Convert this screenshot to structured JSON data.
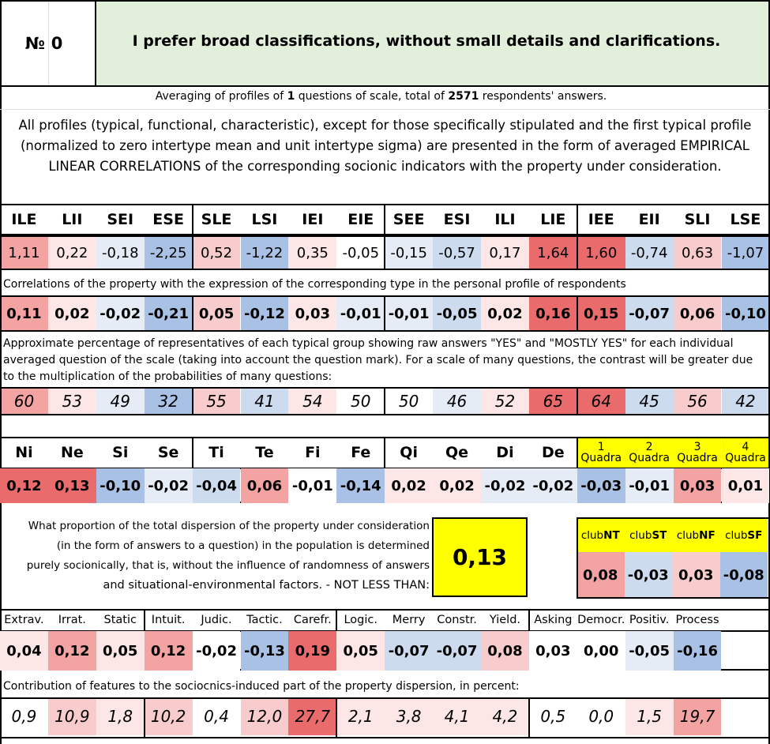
{
  "header": {
    "num_label": "№",
    "num_value": "0",
    "title": "I prefer broad classifications, without small details and clarifications."
  },
  "summary": {
    "pre": "Averaging of profiles of ",
    "questions": "1",
    "mid": " questions of scale, total of ",
    "answers": "2571",
    "post": " respondents' answers."
  },
  "description": "All profiles (typical, functional, characteristic), except for those specifically stipulated and the first typical profile (normalized to zero intertype mean and unit intertype sigma) are presented in the form of averaged EMPIRICAL LINEAR CORRELATIONS of the corresponding socionic indicators with the property under consideration.",
  "types": {
    "headers": [
      "ILE",
      "LII",
      "SEI",
      "ESE",
      "SLE",
      "LSI",
      "IEI",
      "EIE",
      "SEE",
      "ESI",
      "ILI",
      "LIE",
      "IEE",
      "EII",
      "SLI",
      "LSE"
    ],
    "profile": [
      "1,11",
      "0,22",
      "-0,18",
      "-2,25",
      "0,52",
      "-1,22",
      "0,35",
      "-0,05",
      "-0,15",
      "-0,57",
      "0,17",
      "1,64",
      "1,60",
      "-0,74",
      "0,63",
      "-1,07"
    ],
    "corr_note": "Correlations of the property with the expression of the corresponding type in the personal profile of respondents",
    "corr": [
      "0,11",
      "0,02",
      "-0,02",
      "-0,21",
      "0,05",
      "-0,12",
      "0,03",
      "-0,01",
      "-0,01",
      "-0,05",
      "0,02",
      "0,16",
      "0,15",
      "-0,07",
      "0,06",
      "-0,10"
    ],
    "pct_note": "Approximate percentage of representatives of each typical group showing raw answers \"YES\" and \"MOSTLY YES\" for each individual averaged question of the scale (taking into account the question mark). For a scale of many questions, the contrast will be greater due to the multiplication of the probabilities of many questions:",
    "pct": [
      "60",
      "53",
      "49",
      "32",
      "55",
      "41",
      "54",
      "50",
      "50",
      "46",
      "52",
      "65",
      "64",
      "45",
      "56",
      "42"
    ]
  },
  "functions": {
    "headers": [
      "Ni",
      "Ne",
      "Si",
      "Se",
      "Ti",
      "Te",
      "Fi",
      "Fe",
      "Qi",
      "Qe",
      "Di",
      "De"
    ],
    "values": [
      "0,12",
      "0,13",
      "-0,10",
      "-0,02",
      "-0,04",
      "0,06",
      "-0,01",
      "-0,14",
      "0,02",
      "0,02",
      "-0,02",
      "-0,02"
    ],
    "quadra_headers": [
      {
        "num": "1",
        "label": "Quadra"
      },
      {
        "num": "2",
        "label": "Quadra"
      },
      {
        "num": "3",
        "label": "Quadra"
      },
      {
        "num": "4",
        "label": "Quadra"
      }
    ],
    "quadra_values": [
      "-0,03",
      "-0,01",
      "0,03",
      "0,01"
    ]
  },
  "dispersion": {
    "lines": [
      "What proportion of the total dispersion of the property under consideration",
      "(in the form of answers to a question) in the population is determined",
      "purely socionically, that is, without the influence of randomness of answers",
      "and situational-environmental factors. - NOT LESS THAN:"
    ],
    "value": "0,13"
  },
  "clubs": {
    "prefix": "club",
    "headers": [
      "NT",
      "ST",
      "NF",
      "SF"
    ],
    "values": [
      "0,08",
      "-0,03",
      "0,03",
      "-0,08"
    ]
  },
  "traits": {
    "headers": [
      "Extrav.",
      "Irrat.",
      "Static",
      "Intuit.",
      "Judic.",
      "Tactic.",
      "Carefr.",
      "Logic.",
      "Merry",
      "Constr.",
      "Yield.",
      "Asking",
      "Democr.",
      "Positiv.",
      "Process"
    ],
    "values": [
      "0,04",
      "0,12",
      "0,05",
      "0,12",
      "-0,02",
      "-0,13",
      "0,19",
      "0,05",
      "-0,07",
      "-0,07",
      "0,08",
      "0,03",
      "0,00",
      "-0,05",
      "-0,16"
    ],
    "contrib_note": "Contribution of features to the sociocnics-induced part of the property dispersion, in percent:",
    "contrib": [
      "0,9",
      "10,9",
      "1,8",
      "10,2",
      "0,4",
      "12,0",
      "27,7",
      "2,1",
      "3,8",
      "4,1",
      "4,2",
      "0,5",
      "0,0",
      "1,5",
      "19,7"
    ]
  },
  "colors": {
    "header_bg": "#e2efda",
    "highlight": "#ffff00",
    "strong_red": "#ea6b6b",
    "mid_red": "#f4a3a3",
    "light_red": "#f8cccc",
    "pale_red": "#fce6e6",
    "pale_blue": "#e6ecf6",
    "light_blue": "#cddbef",
    "mid_blue": "#a9c1e4"
  }
}
